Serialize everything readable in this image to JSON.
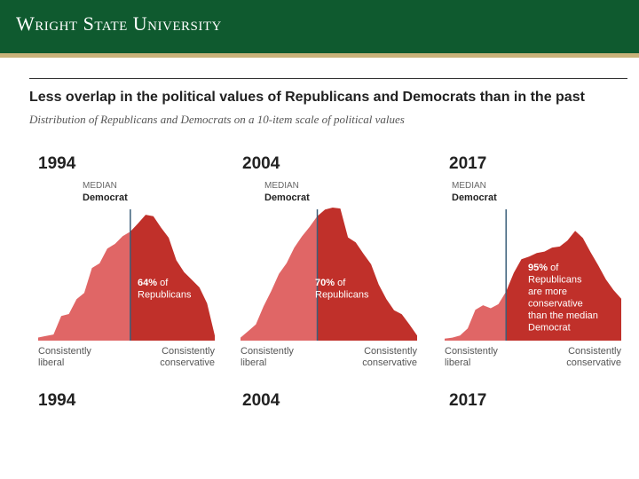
{
  "header": {
    "brand": "Wright State University",
    "bg_color": "#0f5a2f",
    "accent_color": "#c9b27a"
  },
  "chart_data": [
    {
      "type": "area",
      "year": "1994",
      "title": "Less overlap in the political values of Republicans and Democrats than in the past",
      "subtitle": "Distribution of Republicans and Democrats on a 10-item scale of political values",
      "median_label": "MEDIAN",
      "median_group": "Democrat",
      "xlabel_left": [
        "Consistently",
        "liberal"
      ],
      "xlabel_right": [
        "Consistently",
        "conservative"
      ],
      "median_index": 12,
      "percent": "64%",
      "annotation_lines": [
        "of",
        "Republicans"
      ],
      "values": [
        0.6,
        0.9,
        1.2,
        4.8,
        5.2,
        8.1,
        9.3,
        14.2,
        15.1,
        18.0,
        18.9,
        20.4,
        21.3,
        22.9,
        24.6,
        24.3,
        22.1,
        20.1,
        15.7,
        13.4,
        11.9,
        10.4,
        7.3,
        1.0
      ],
      "ylim": [
        0,
        26
      ]
    },
    {
      "type": "area",
      "year": "2004",
      "median_label": "MEDIAN",
      "median_group": "Democrat",
      "xlabel_left": [
        "Consistently",
        "liberal"
      ],
      "xlabel_right": [
        "Consistently",
        "conservative"
      ],
      "median_index": 10,
      "percent": "70%",
      "annotation_lines": [
        "of",
        "Republicans"
      ],
      "values": [
        0.6,
        1.9,
        3.2,
        6.8,
        9.8,
        13.2,
        15.3,
        18.4,
        20.6,
        22.5,
        24.6,
        25.9,
        26.3,
        26.1,
        20.4,
        19.4,
        17.2,
        15.1,
        11.1,
        8.2,
        6.0,
        5.2,
        3.2,
        1.0
      ],
      "ylim": [
        0,
        27
      ]
    },
    {
      "type": "area",
      "year": "2017",
      "median_label": "MEDIAN",
      "median_group": "Democrat",
      "xlabel_left": [
        "Consistently",
        "liberal"
      ],
      "xlabel_right": [
        "Consistently",
        "conservative"
      ],
      "median_index": 8,
      "percent": "95%",
      "annotation_lines": [
        "of",
        "Republicans",
        "are more",
        "conservative",
        "than the median",
        "Democrat"
      ],
      "values": [
        0.4,
        0.6,
        1.0,
        2.4,
        6.1,
        7.0,
        6.4,
        7.2,
        9.7,
        13.4,
        16.1,
        16.6,
        17.3,
        17.6,
        18.4,
        18.6,
        19.8,
        21.7,
        20.3,
        17.5,
        14.9,
        12.1,
        10.0,
        8.3
      ],
      "ylim": [
        0,
        27
      ]
    }
  ],
  "colors": {
    "democrat_fill": "#e06666",
    "republican_fill": "#c0302a",
    "median_line": "#3b5f7a"
  },
  "footer": {
    "years": [
      "1994",
      "2004",
      "2017"
    ]
  }
}
